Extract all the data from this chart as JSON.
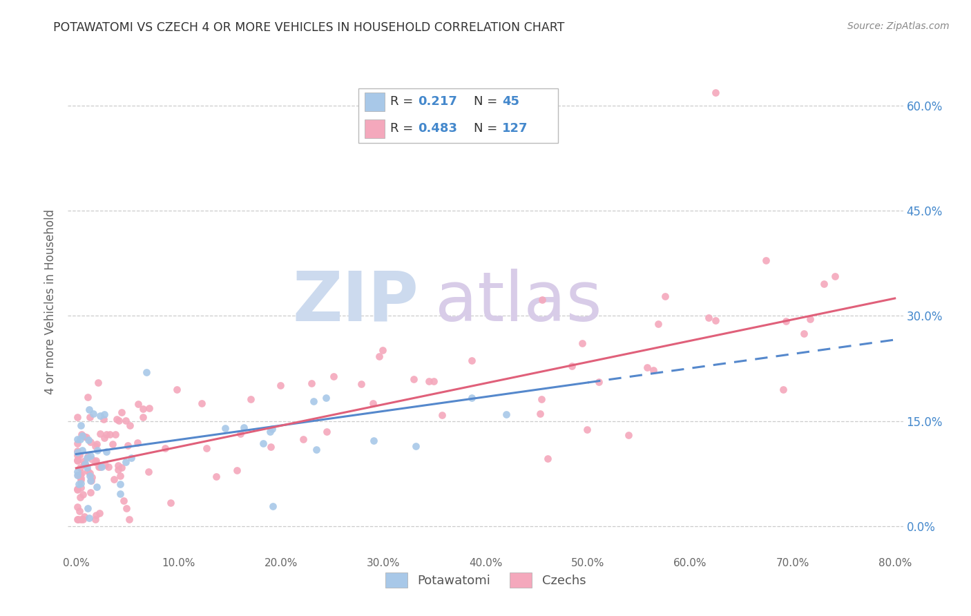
{
  "title": "POTAWATOMI VS CZECH 4 OR MORE VEHICLES IN HOUSEHOLD CORRELATION CHART",
  "source": "Source: ZipAtlas.com",
  "ylabel_label": "4 or more Vehicles in Household",
  "legend_label1": "Potawatomi",
  "legend_label2": "Czechs",
  "R1": "0.217",
  "N1": "45",
  "R2": "0.483",
  "N2": "127",
  "color1": "#a8c8e8",
  "color2": "#f4a8bc",
  "line_color1": "#5588cc",
  "line_color2": "#e0607a",
  "grid_color": "#cccccc",
  "background_color": "#ffffff",
  "xlim": [
    -0.008,
    0.808
  ],
  "ylim": [
    -0.04,
    0.68
  ],
  "xtick_vals": [
    0.0,
    0.1,
    0.2,
    0.3,
    0.4,
    0.5,
    0.6,
    0.7,
    0.8
  ],
  "xtick_labels": [
    "0.0%",
    "10.0%",
    "20.0%",
    "30.0%",
    "40.0%",
    "50.0%",
    "60.0%",
    "70.0%",
    "80.0%"
  ],
  "ytick_vals": [
    0.0,
    0.15,
    0.3,
    0.45,
    0.6
  ],
  "ytick_labels": [
    "0.0%",
    "15.0%",
    "30.0%",
    "45.0%",
    "60.0%"
  ],
  "line1_x0": 0.0,
  "line1_x1": 0.5,
  "line1_y0": 0.103,
  "line1_y1": 0.205,
  "line1_dash_x0": 0.5,
  "line1_dash_x1": 0.8,
  "line1_dash_y0": 0.205,
  "line1_dash_y1": 0.266,
  "line2_x0": 0.0,
  "line2_x1": 0.8,
  "line2_y0": 0.083,
  "line2_y1": 0.325,
  "watermark_zip_color": "#ccdaee",
  "watermark_atlas_color": "#d8cce8",
  "title_color": "#333333",
  "source_color": "#888888",
  "tick_color": "#666666",
  "right_tick_color": "#4488cc",
  "ylabel_color": "#666666"
}
